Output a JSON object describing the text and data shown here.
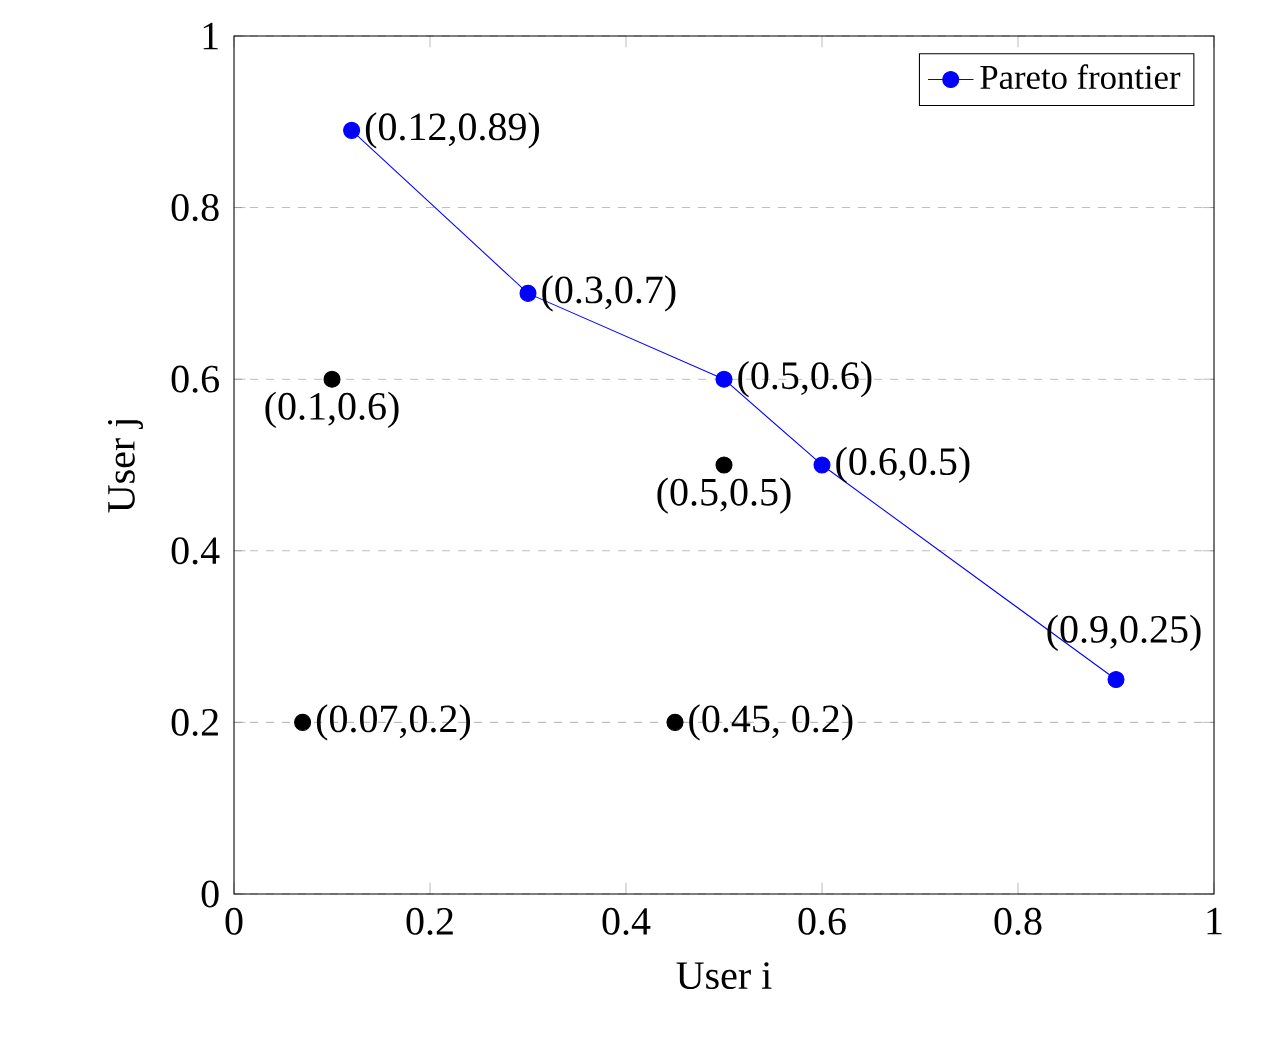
{
  "chart_data": {
    "type": "scatter",
    "xlabel": "User i",
    "ylabel": "User j",
    "xlim": [
      0,
      1
    ],
    "ylim": [
      0,
      1
    ],
    "xticks": [
      0,
      0.2,
      0.4,
      0.6,
      0.8,
      1
    ],
    "yticks": [
      0,
      0.2,
      0.4,
      0.6,
      0.8,
      1
    ],
    "grid": "y",
    "legend": "top right",
    "marker": "circle",
    "series": [
      {
        "name": "Pareto frontier",
        "type": "line",
        "color": "#0000ff",
        "x": [
          0.12,
          0.3,
          0.5,
          0.6,
          0.9
        ],
        "values": [
          0.89,
          0.7,
          0.6,
          0.5,
          0.25
        ],
        "value_labels": [
          "(0.12,0.89)",
          "(0.3,0.7)",
          "(0.5,0.6)",
          "(0.6,0.5)",
          "(0.9,0.25)"
        ]
      },
      {
        "type": "scatter",
        "color": "#000000",
        "x": [
          0.1,
          0.5,
          0.07,
          0.45
        ],
        "values": [
          0.6,
          0.5,
          0.2,
          0.2
        ],
        "value_labels": [
          "(0.1,0.6)",
          "(0.5,0.5)",
          "(0.07,0.2)",
          "(0.45, 0.2)"
        ]
      }
    ]
  }
}
